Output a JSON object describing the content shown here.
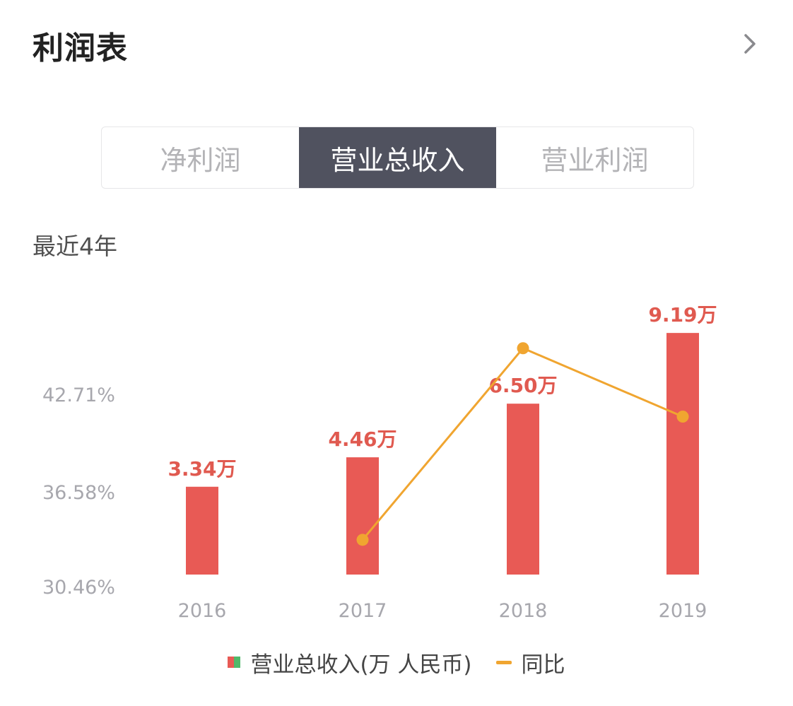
{
  "header": {
    "title": "利润表"
  },
  "tabs": [
    {
      "label": "净利润",
      "active": false
    },
    {
      "label": "营业总收入",
      "active": true
    },
    {
      "label": "营业利润",
      "active": false
    }
  ],
  "subtitle": "最近4年",
  "legend": {
    "bar_label": "营业总收入(万 人民币)",
    "line_label": "同比"
  },
  "colors": {
    "bar": "#e85a55",
    "line": "#f0a530",
    "data_label": "#e05a50",
    "axis_text": "#a7a7ad",
    "tab_active_bg": "#50525f"
  },
  "chart_data": {
    "type": "bar",
    "categories": [
      "2016",
      "2017",
      "2018",
      "2019"
    ],
    "series": [
      {
        "name": "营业总收入(万 人民币)",
        "type": "bar",
        "values": [
          3.34,
          4.46,
          6.5,
          9.19
        ],
        "labels": [
          "3.34万",
          "4.46万",
          "6.50万",
          "9.19万"
        ]
      },
      {
        "name": "同比",
        "type": "line",
        "values": [
          null,
          33.53,
          45.74,
          41.38
        ]
      }
    ],
    "y_axis_labels": [
      "42.71%",
      "36.58%",
      "30.46%"
    ],
    "y_axis_values": [
      42.71,
      36.58,
      30.46
    ],
    "xlabel": "",
    "ylabel": "",
    "grid": false,
    "legend": "bottom-center"
  }
}
